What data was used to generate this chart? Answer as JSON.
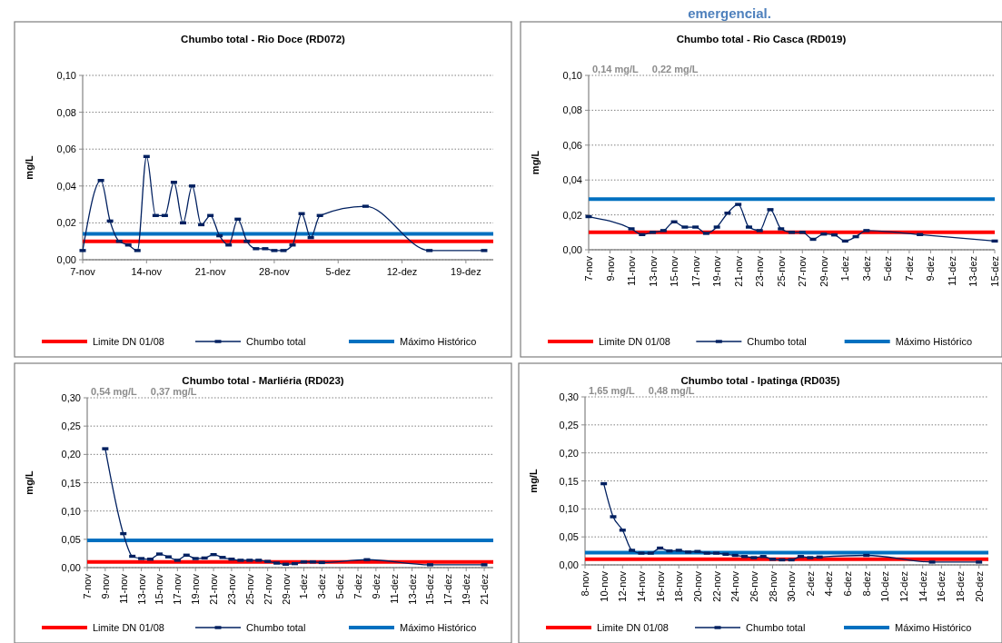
{
  "chart_data": [
    {
      "type": "other",
      "title": "emergencial."
    },
    {
      "type": "line",
      "title": "Chumbo total - Rio Doce (RD072)",
      "ylabel": "mg/L",
      "grid": "y",
      "legend": "bottom",
      "xlim": [
        "--11-07",
        "--12-22"
      ],
      "xticks": [
        {
          "value": "--11-07",
          "label": "7-nov"
        },
        {
          "value": "--11-14",
          "label": "14-nov"
        },
        {
          "value": "--11-21",
          "label": "21-nov"
        },
        {
          "value": "--11-28",
          "label": "28-nov"
        },
        {
          "value": "--12-05",
          "label": "5-dez"
        },
        {
          "value": "--12-12",
          "label": "12-dez"
        },
        {
          "value": "--12-19",
          "label": "19-dez"
        }
      ],
      "ylim": [
        0,
        0.1
      ],
      "yticks": [
        {
          "value": 0,
          "label": "0,00"
        },
        {
          "value": 0.02,
          "label": "0,02"
        },
        {
          "value": 0.04,
          "label": "0,04"
        },
        {
          "value": 0.06,
          "label": "0,06"
        },
        {
          "value": 0.08,
          "label": "0,08"
        },
        {
          "value": 0.1,
          "label": "0,10"
        }
      ],
      "series": [
        {
          "name": "Limite DN 01/08",
          "color": "#ff0000",
          "marker": "none",
          "x": [
            "--11-07",
            "--12-22"
          ],
          "values": [
            0.01,
            0.01
          ]
        },
        {
          "name": "Chumbo total",
          "color": "#002060",
          "marker": "square",
          "x": [
            "--11-07",
            "--11-09",
            "--11-10",
            "--11-11",
            "--11-12",
            "--11-13",
            "--11-14",
            "--11-15",
            "--11-16",
            "--11-17",
            "--11-18",
            "--11-19",
            "--11-20",
            "--11-21",
            "--11-22",
            "--11-23",
            "--11-24",
            "--11-25",
            "--11-26",
            "--11-27",
            "--11-28",
            "--11-29",
            "--11-30",
            "--12-01",
            "--12-02",
            "--12-03",
            "--12-08",
            "--12-15",
            "--12-21"
          ],
          "values": [
            0.005,
            0.043,
            0.021,
            0.01,
            0.008,
            0.005,
            0.056,
            0.024,
            0.024,
            0.042,
            0.02,
            0.04,
            0.019,
            0.024,
            0.013,
            0.008,
            0.022,
            0.01,
            0.006,
            0.006,
            0.005,
            0.005,
            0.008,
            0.025,
            0.012,
            0.024,
            0.029,
            0.005,
            0.005
          ]
        },
        {
          "name": "Máximo Histórico",
          "color": "#0070c0",
          "marker": "none",
          "x": [
            "--11-07",
            "--12-22"
          ],
          "values": [
            0.014,
            0.014
          ]
        }
      ]
    },
    {
      "type": "line",
      "title": "Chumbo total - Rio Casca (RD019)",
      "ylabel": "mg/L",
      "grid": "y",
      "legend": "bottom",
      "annotations": [
        "0,14 mg/L",
        "0,22 mg/L"
      ],
      "xlim": [
        "--11-07",
        "--12-15"
      ],
      "xticks": [
        {
          "value": "--11-07",
          "label": "7-nov"
        },
        {
          "value": "--11-09",
          "label": "9-nov"
        },
        {
          "value": "--11-11",
          "label": "11-nov"
        },
        {
          "value": "--11-13",
          "label": "13-nov"
        },
        {
          "value": "--11-15",
          "label": "15-nov"
        },
        {
          "value": "--11-17",
          "label": "17-nov"
        },
        {
          "value": "--11-19",
          "label": "19-nov"
        },
        {
          "value": "--11-21",
          "label": "21-nov"
        },
        {
          "value": "--11-23",
          "label": "23-nov"
        },
        {
          "value": "--11-25",
          "label": "25-nov"
        },
        {
          "value": "--11-27",
          "label": "27-nov"
        },
        {
          "value": "--11-29",
          "label": "29-nov"
        },
        {
          "value": "--12-01",
          "label": "1-dez"
        },
        {
          "value": "--12-03",
          "label": "3-dez"
        },
        {
          "value": "--12-05",
          "label": "5-dez"
        },
        {
          "value": "--12-07",
          "label": "7-dez"
        },
        {
          "value": "--12-09",
          "label": "9-dez"
        },
        {
          "value": "--12-11",
          "label": "11-dez"
        },
        {
          "value": "--12-13",
          "label": "13-dez"
        },
        {
          "value": "--12-15",
          "label": "15-dez"
        }
      ],
      "ylim": [
        0,
        0.1
      ],
      "yticks": [
        {
          "value": 0,
          "label": "0,00"
        },
        {
          "value": 0.02,
          "label": "0,02"
        },
        {
          "value": 0.04,
          "label": "0,04"
        },
        {
          "value": 0.06,
          "label": "0,06"
        },
        {
          "value": 0.08,
          "label": "0,08"
        },
        {
          "value": 0.1,
          "label": "0,10"
        }
      ],
      "series": [
        {
          "name": "Limite DN 01/08",
          "color": "#ff0000",
          "marker": "none",
          "x": [
            "--11-07",
            "--12-15"
          ],
          "values": [
            0.01,
            0.01
          ]
        },
        {
          "name": "Chumbo total",
          "color": "#002060",
          "marker": "square",
          "x": [
            "--11-07",
            "--11-11",
            "--11-12",
            "--11-13",
            "--11-14",
            "--11-15",
            "--11-16",
            "--11-17",
            "--11-18",
            "--11-19",
            "--11-20",
            "--11-21",
            "--11-22",
            "--11-23",
            "--11-24",
            "--11-25",
            "--11-26",
            "--11-27",
            "--11-28",
            "--11-29",
            "--11-30",
            "--12-01",
            "--12-02",
            "--12-03",
            "--12-08",
            "--12-15"
          ],
          "values": [
            0.019,
            0.012,
            0.0087,
            0.01,
            0.011,
            0.016,
            0.013,
            0.013,
            0.0094,
            0.013,
            0.021,
            0.026,
            0.013,
            0.011,
            0.023,
            0.012,
            0.01,
            0.01,
            0.006,
            0.009,
            0.0085,
            0.005,
            0.0075,
            0.011,
            0.0087,
            0.005
          ]
        },
        {
          "name": "Máximo Histórico",
          "color": "#0070c0",
          "marker": "none",
          "x": [
            "--11-07",
            "--12-15"
          ],
          "values": [
            0.029,
            0.029
          ]
        }
      ]
    },
    {
      "type": "line",
      "title": "Chumbo total - Marliéria (RD023)",
      "ylabel": "mg/L",
      "grid": "y",
      "legend": "bottom",
      "annotations": [
        "0,54 mg/L",
        "0,37 mg/L"
      ],
      "xlim": [
        "--11-07",
        "--12-22"
      ],
      "xticks": [
        {
          "value": "--11-07",
          "label": "7-nov"
        },
        {
          "value": "--11-09",
          "label": "9-nov"
        },
        {
          "value": "--11-11",
          "label": "11-nov"
        },
        {
          "value": "--11-13",
          "label": "13-nov"
        },
        {
          "value": "--11-15",
          "label": "15-nov"
        },
        {
          "value": "--11-17",
          "label": "17-nov"
        },
        {
          "value": "--11-19",
          "label": "19-nov"
        },
        {
          "value": "--11-21",
          "label": "21-nov"
        },
        {
          "value": "--11-23",
          "label": "23-nov"
        },
        {
          "value": "--11-25",
          "label": "25-nov"
        },
        {
          "value": "--11-27",
          "label": "27-nov"
        },
        {
          "value": "--11-29",
          "label": "29-nov"
        },
        {
          "value": "--12-01",
          "label": "1-dez"
        },
        {
          "value": "--12-03",
          "label": "3-dez"
        },
        {
          "value": "--12-05",
          "label": "5-dez"
        },
        {
          "value": "--12-07",
          "label": "7-dez"
        },
        {
          "value": "--12-09",
          "label": "9-dez"
        },
        {
          "value": "--12-11",
          "label": "11-dez"
        },
        {
          "value": "--12-13",
          "label": "13-dez"
        },
        {
          "value": "--12-15",
          "label": "15-dez"
        },
        {
          "value": "--12-17",
          "label": "17-dez"
        },
        {
          "value": "--12-19",
          "label": "19-dez"
        },
        {
          "value": "--12-21",
          "label": "21-dez"
        }
      ],
      "ylim": [
        0,
        0.3
      ],
      "yticks": [
        {
          "value": 0,
          "label": "0,00"
        },
        {
          "value": 0.05,
          "label": "0,05"
        },
        {
          "value": 0.1,
          "label": "0,10"
        },
        {
          "value": 0.15,
          "label": "0,15"
        },
        {
          "value": 0.2,
          "label": "0,20"
        },
        {
          "value": 0.25,
          "label": "0,25"
        },
        {
          "value": 0.3,
          "label": "0,30"
        }
      ],
      "series": [
        {
          "name": "Limite DN 01/08",
          "color": "#ff0000",
          "marker": "none",
          "x": [
            "--11-07",
            "--12-22"
          ],
          "values": [
            0.01,
            0.01
          ]
        },
        {
          "name": "Chumbo total",
          "color": "#002060",
          "marker": "square",
          "x": [
            "--11-09",
            "--11-11",
            "--11-12",
            "--11-13",
            "--11-14",
            "--11-15",
            "--11-16",
            "--11-17",
            "--11-18",
            "--11-19",
            "--11-20",
            "--11-21",
            "--11-22",
            "--11-23",
            "--11-24",
            "--11-25",
            "--11-26",
            "--11-27",
            "--11-28",
            "--11-29",
            "--11-30",
            "--12-01",
            "--12-02",
            "--12-03",
            "--12-08",
            "--12-15",
            "--12-21"
          ],
          "values": [
            0.21,
            0.06,
            0.02,
            0.016,
            0.015,
            0.024,
            0.019,
            0.013,
            0.022,
            0.016,
            0.017,
            0.023,
            0.018,
            0.015,
            0.013,
            0.013,
            0.013,
            0.011,
            0.008,
            0.006,
            0.007,
            0.01,
            0.01,
            0.009,
            0.014,
            0.005,
            0.005
          ]
        },
        {
          "name": "Máximo Histórico",
          "color": "#0070c0",
          "marker": "none",
          "x": [
            "--11-07",
            "--12-22"
          ],
          "values": [
            0.048,
            0.048
          ]
        }
      ]
    },
    {
      "type": "line",
      "title": "Chumbo total - Ipatinga (RD035)",
      "ylabel": "mg/L",
      "grid": "y",
      "legend": "bottom",
      "annotations": [
        "1,65 mg/L",
        "0,48 mg/L"
      ],
      "xlim": [
        "--11-08",
        "--12-21"
      ],
      "xticks": [
        {
          "value": "--11-08",
          "label": "8-nov"
        },
        {
          "value": "--11-10",
          "label": "10-nov"
        },
        {
          "value": "--11-12",
          "label": "12-nov"
        },
        {
          "value": "--11-14",
          "label": "14-nov"
        },
        {
          "value": "--11-16",
          "label": "16-nov"
        },
        {
          "value": "--11-18",
          "label": "18-nov"
        },
        {
          "value": "--11-20",
          "label": "20-nov"
        },
        {
          "value": "--11-22",
          "label": "22-nov"
        },
        {
          "value": "--11-24",
          "label": "24-nov"
        },
        {
          "value": "--11-26",
          "label": "26-nov"
        },
        {
          "value": "--11-28",
          "label": "28-nov"
        },
        {
          "value": "--11-30",
          "label": "30-nov"
        },
        {
          "value": "--12-02",
          "label": "2-dez"
        },
        {
          "value": "--12-04",
          "label": "4-dez"
        },
        {
          "value": "--12-06",
          "label": "6-dez"
        },
        {
          "value": "--12-08",
          "label": "8-dez"
        },
        {
          "value": "--12-10",
          "label": "10-dez"
        },
        {
          "value": "--12-12",
          "label": "12-dez"
        },
        {
          "value": "--12-14",
          "label": "14-dez"
        },
        {
          "value": "--12-16",
          "label": "16-dez"
        },
        {
          "value": "--12-18",
          "label": "18-dez"
        },
        {
          "value": "--12-20",
          "label": "20-dez"
        }
      ],
      "ylim": [
        0,
        0.3
      ],
      "yticks": [
        {
          "value": 0,
          "label": "0,00"
        },
        {
          "value": 0.05,
          "label": "0,05"
        },
        {
          "value": 0.1,
          "label": "0,10"
        },
        {
          "value": 0.15,
          "label": "0,15"
        },
        {
          "value": 0.2,
          "label": "0,20"
        },
        {
          "value": 0.25,
          "label": "0,25"
        },
        {
          "value": 0.3,
          "label": "0,30"
        }
      ],
      "series": [
        {
          "name": "Limite DN 01/08",
          "color": "#ff0000",
          "marker": "none",
          "x": [
            "--11-08",
            "--12-21"
          ],
          "values": [
            0.01,
            0.01
          ]
        },
        {
          "name": "Chumbo total",
          "color": "#002060",
          "marker": "square",
          "x": [
            "--11-10",
            "--11-11",
            "--11-12",
            "--11-13",
            "--11-14",
            "--11-15",
            "--11-16",
            "--11-17",
            "--11-18",
            "--11-19",
            "--11-20",
            "--11-21",
            "--11-22",
            "--11-23",
            "--11-24",
            "--11-25",
            "--11-26",
            "--11-27",
            "--11-28",
            "--11-29",
            "--11-30",
            "--12-01",
            "--12-02",
            "--12-03",
            "--12-08",
            "--12-15",
            "--12-20"
          ],
          "values": [
            0.145,
            0.086,
            0.062,
            0.026,
            0.021,
            0.021,
            0.03,
            0.025,
            0.026,
            0.023,
            0.024,
            0.021,
            0.021,
            0.019,
            0.017,
            0.015,
            0.013,
            0.015,
            0.01,
            0.009,
            0.009,
            0.015,
            0.013,
            0.014,
            0.017,
            0.005,
            0.005
          ]
        },
        {
          "name": "Máximo Histórico",
          "color": "#0070c0",
          "marker": "none",
          "x": [
            "--11-08",
            "--12-21"
          ],
          "values": [
            0.022,
            0.022
          ]
        }
      ]
    }
  ]
}
